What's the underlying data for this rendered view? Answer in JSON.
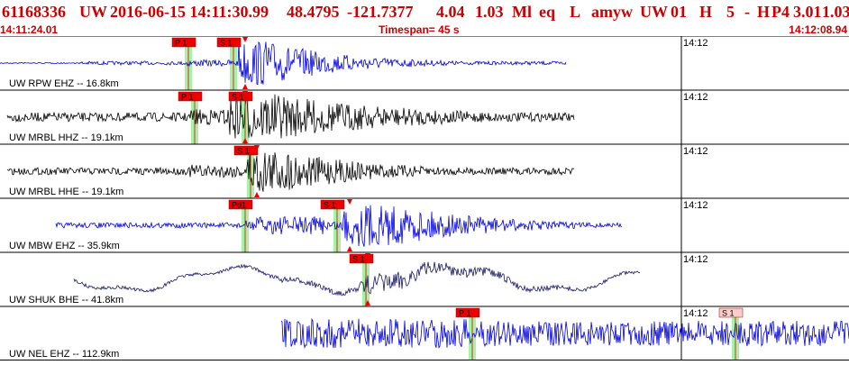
{
  "header": {
    "event_id": "61168336",
    "network": "UW",
    "datetime": "2016-06-15 14:11:30.99",
    "lat": "48.4795",
    "lon": "-121.7377",
    "depth": "4.04",
    "magnitude": "1.03",
    "mag_type": "Ml",
    "event_type": "eq",
    "flag1": "L",
    "author": "amyw",
    "net2": "UW",
    "version": "01",
    "flag2": "H",
    "count": "5",
    "dash": "-",
    "flag3": "H",
    "subsource": "P4",
    "rms1": "3.01",
    "rms2": "1.03",
    "start_time": "14:11:24.01",
    "timespan": "Timespan=  45 s",
    "end_time": "14:12:08.94"
  },
  "panels": [
    {
      "label": "UW RPW EHZ -- 16.8km",
      "color": "#0000dd",
      "time_label": "14:12",
      "picks": [
        {
          "label": "P 1",
          "x": 205
        },
        {
          "label": "S 1",
          "x": 255
        }
      ],
      "arrow_x": 272
    },
    {
      "label": "UW MRBL HHZ -- 19.1km",
      "color": "#000000",
      "time_label": "14:12",
      "picks": [
        {
          "label": "P 1",
          "x": 212
        },
        {
          "label": "S 1",
          "x": 268
        }
      ],
      "arrow_x": 272
    },
    {
      "label": "UW MRBL HHE -- 19.1km",
      "color": "#000000",
      "time_label": "14:12",
      "picks": [
        {
          "label": "S 1",
          "x": 274
        }
      ],
      "arrow_x": 285
    },
    {
      "label": "UW MBW EHZ -- 35.9km",
      "color": "#0000dd",
      "time_label": "14:12",
      "picks": [
        {
          "label": "Pd1",
          "x": 268
        },
        {
          "label": "S 1",
          "x": 370
        }
      ],
      "arrow_x": 388
    },
    {
      "label": "UW SHUK BHE -- 41.8km",
      "color": "#1a1a66",
      "time_label": "14:12",
      "picks": [
        {
          "label": "S 1",
          "x": 402
        }
      ],
      "arrow_x": 408
    },
    {
      "label": "UW NEL EHZ -- 112.9km",
      "color": "#0000dd",
      "time_label": "14:12",
      "picks": [
        {
          "label": "P 1",
          "x": 520
        },
        {
          "label": "S 1",
          "x": 812
        }
      ],
      "arrow_x": 0
    }
  ]
}
